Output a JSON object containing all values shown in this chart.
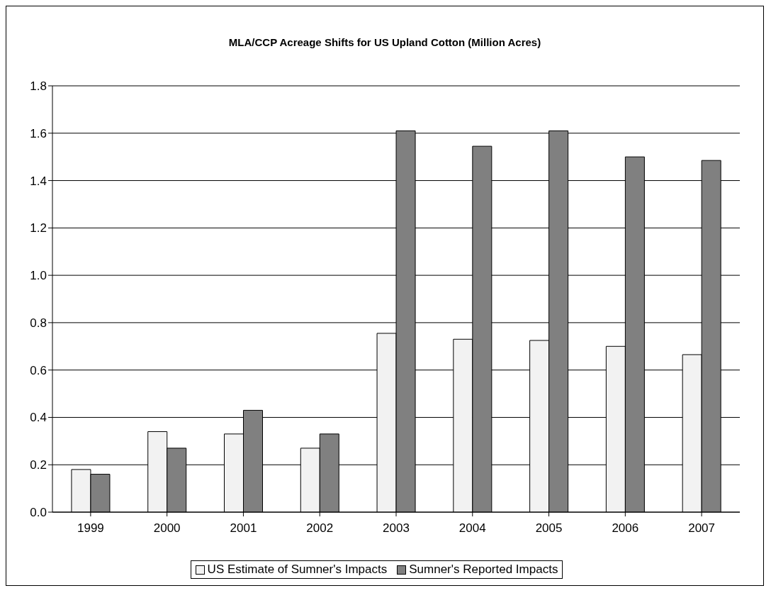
{
  "chart_data": {
    "type": "bar",
    "title": "MLA/CCP Acreage Shifts for US Upland Cotton (Million Acres)",
    "categories": [
      "1999",
      "2000",
      "2001",
      "2002",
      "2003",
      "2004",
      "2005",
      "2006",
      "2007"
    ],
    "series": [
      {
        "name": "US Estimate of Sumner's Impacts",
        "color": "#f2f2f2",
        "values": [
          0.18,
          0.34,
          0.33,
          0.27,
          0.755,
          0.73,
          0.725,
          0.7,
          0.665
        ]
      },
      {
        "name": "Sumner's Reported Impacts",
        "color": "#808080",
        "values": [
          0.16,
          0.27,
          0.43,
          0.33,
          1.61,
          1.545,
          1.61,
          1.5,
          1.485
        ]
      }
    ],
    "ylim": [
      0,
      1.8
    ],
    "yticks": [
      {
        "value": 0,
        "label": "0.0"
      },
      {
        "value": 0.2,
        "label": "0.2"
      },
      {
        "value": 0.4,
        "label": "0.4"
      },
      {
        "value": 0.6,
        "label": "0.6"
      },
      {
        "value": 0.8,
        "label": "0.8"
      },
      {
        "value": 1,
        "label": "1.0"
      },
      {
        "value": 1.2,
        "label": "1.2"
      },
      {
        "value": 1.4,
        "label": "1.4"
      },
      {
        "value": 1.6,
        "label": "1.6"
      },
      {
        "value": 1.8,
        "label": "1.8"
      }
    ],
    "grid": "y",
    "legend": "bottom"
  }
}
